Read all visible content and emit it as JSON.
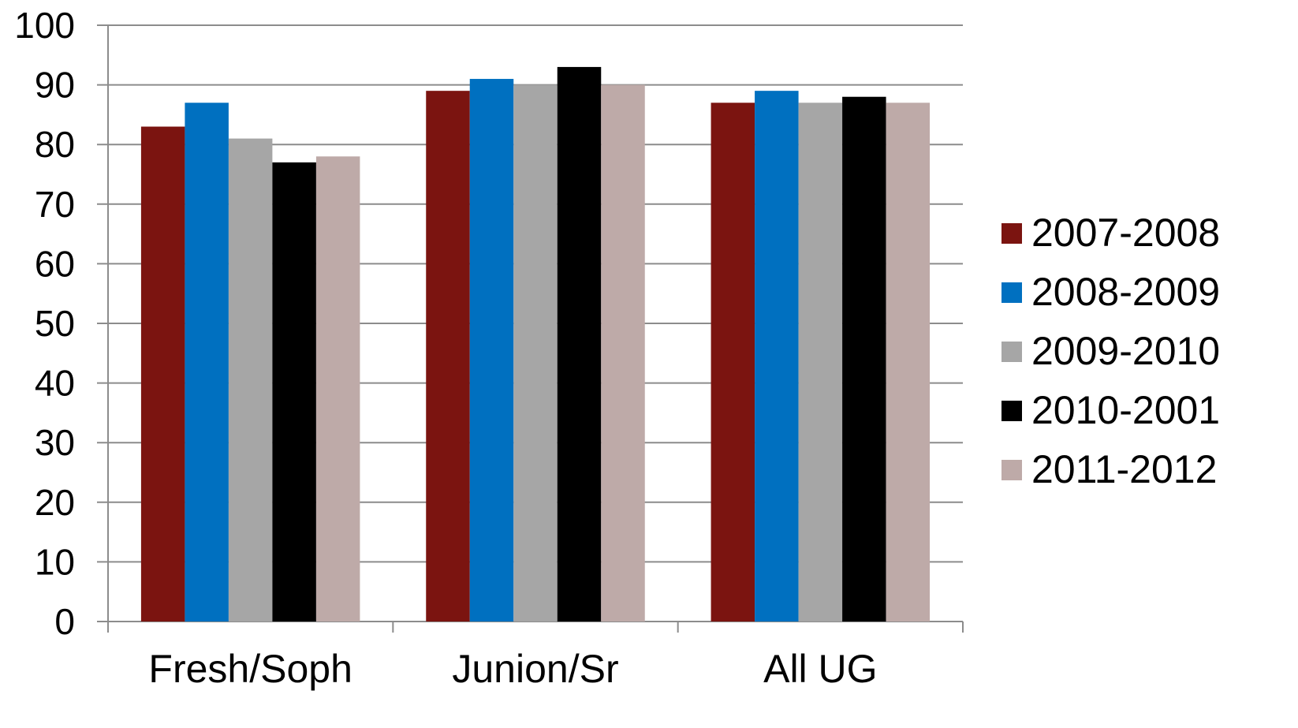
{
  "chart_data": {
    "type": "bar",
    "title": "",
    "xlabel": "",
    "ylabel": "",
    "ylim": [
      0,
      100
    ],
    "yticks": [
      "0",
      "10",
      "20",
      "30",
      "40",
      "50",
      "60",
      "70",
      "80",
      "90",
      "100"
    ],
    "grid": true,
    "legend_position": "right",
    "categories": [
      "Fresh/Soph",
      "Junion/Sr",
      "All UG"
    ],
    "series": [
      {
        "name": "2007-2008",
        "color": "#7B1410",
        "values": [
          83,
          89,
          87
        ]
      },
      {
        "name": "2008-2009",
        "color": "#0070C0",
        "values": [
          87,
          91,
          89
        ]
      },
      {
        "name": "2009-2010",
        "color": "#A6A6A6",
        "values": [
          81,
          90,
          87
        ]
      },
      {
        "name": "2010-2001",
        "color": "#000000",
        "values": [
          77,
          93,
          88
        ]
      },
      {
        "name": "2011-2012",
        "color": "#BEAAA8",
        "values": [
          78,
          90,
          87
        ]
      }
    ]
  }
}
